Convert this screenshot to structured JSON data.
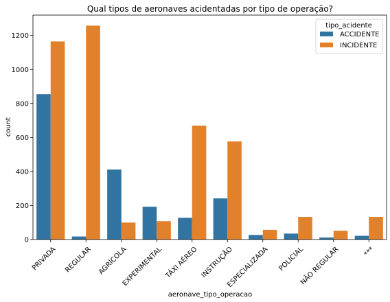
{
  "chart_data": {
    "type": "bar",
    "title": "Qual tipos de aeronaves acidentadas por tipo de operação?",
    "xlabel": "aeronave_tipo_operacao",
    "ylabel": "count",
    "ylim": [
      0,
      1320
    ],
    "yticks": [
      0,
      200,
      400,
      600,
      800,
      1000,
      1200
    ],
    "categories": [
      "PRIVADA",
      "REGULAR",
      "AGRÍCOLA",
      "EXPERIMENTAL",
      "TÁXI AÉREO",
      "INSTRUÇÃO",
      "ESPECIALIZADA",
      "POLICIAL",
      "NÃO REGULAR",
      "***"
    ],
    "series": [
      {
        "name": "ACCIDENTE",
        "color": "#3274a1",
        "values": [
          855,
          18,
          412,
          193,
          128,
          242,
          27,
          35,
          12,
          22
        ]
      },
      {
        "name": "INCIDENTE",
        "color": "#e1812c",
        "values": [
          1165,
          1258,
          100,
          108,
          670,
          577,
          57,
          133,
          52,
          133
        ]
      }
    ],
    "legend": {
      "title": "tipo_acidente",
      "placement": "top-right"
    },
    "grid": false
  }
}
